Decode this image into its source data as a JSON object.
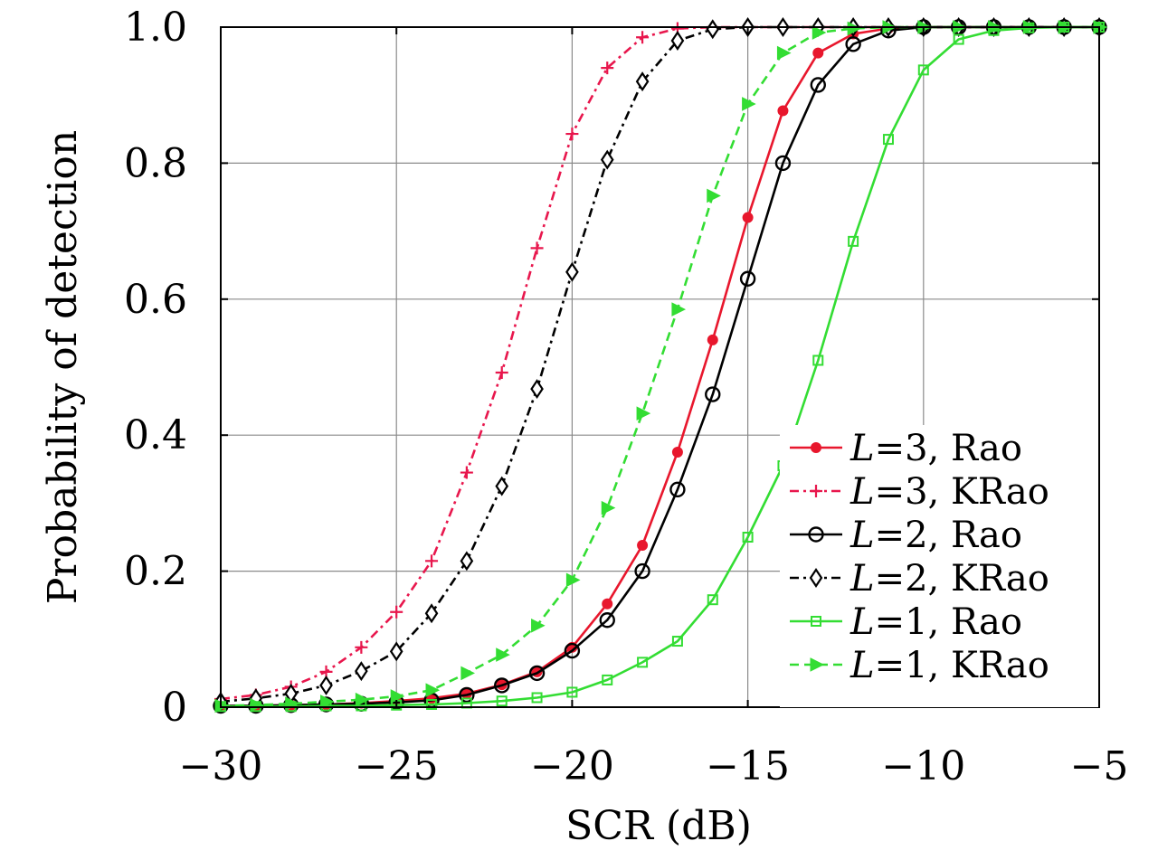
{
  "chart_data": {
    "type": "line",
    "title": "",
    "xlabel": "SCR (dB)",
    "ylabel": "Probability of detection",
    "xlim": [
      -30,
      -5
    ],
    "ylim": [
      0,
      1
    ],
    "xticks": [
      -30,
      -25,
      -20,
      -15,
      -10,
      -5
    ],
    "xtick_labels": [
      "−30",
      "−25",
      "−20",
      "−15",
      "−10",
      "−5"
    ],
    "yticks": [
      0,
      0.2,
      0.4,
      0.6,
      0.8,
      1.0
    ],
    "ytick_labels": [
      "0",
      "0.2",
      "0.4",
      "0.6",
      "0.8",
      "1.0"
    ],
    "grid": true,
    "legend_position": "bottom-right",
    "x": [
      -30,
      -29,
      -28,
      -27,
      -26,
      -25,
      -24,
      -23,
      -22,
      -21,
      -20,
      -19,
      -18,
      -17,
      -16,
      -15,
      -14,
      -13,
      -12,
      -11,
      -10,
      -9,
      -8,
      -7,
      -6,
      -5
    ],
    "series": [
      {
        "name": "L=3, Rao",
        "legend_var": "L",
        "legend_rest": "=3, Rao",
        "color": "#e8172d",
        "dash": "solid",
        "marker": "filled-circle",
        "values": [
          0.002,
          0.002,
          0.003,
          0.004,
          0.006,
          0.009,
          0.013,
          0.02,
          0.033,
          0.052,
          0.088,
          0.152,
          0.238,
          0.375,
          0.54,
          0.72,
          0.877,
          0.962,
          0.99,
          0.998,
          1.0,
          1.0,
          1.0,
          1.0,
          1.0,
          1.0
        ]
      },
      {
        "name": "L=3, KRao",
        "legend_var": "L",
        "legend_rest": "=3, KRao",
        "color": "#e8174d",
        "dash": "dashdot",
        "marker": "plus",
        "values": [
          0.012,
          0.018,
          0.03,
          0.052,
          0.088,
          0.14,
          0.215,
          0.345,
          0.492,
          0.675,
          0.843,
          0.94,
          0.985,
          0.998,
          1.0,
          1.0,
          1.0,
          1.0,
          1.0,
          1.0,
          1.0,
          1.0,
          1.0,
          1.0,
          1.0,
          1.0
        ]
      },
      {
        "name": "L=2, Rao",
        "legend_var": "L",
        "legend_rest": "=2, Rao",
        "color": "#000000",
        "dash": "solid",
        "marker": "open-circle",
        "values": [
          0.002,
          0.002,
          0.003,
          0.004,
          0.005,
          0.007,
          0.01,
          0.018,
          0.032,
          0.05,
          0.083,
          0.128,
          0.2,
          0.32,
          0.46,
          0.63,
          0.8,
          0.915,
          0.975,
          0.995,
          1.0,
          1.0,
          1.0,
          1.0,
          1.0,
          1.0
        ]
      },
      {
        "name": "L=2, KRao",
        "legend_var": "L",
        "legend_rest": "=2, KRao",
        "color": "#000000",
        "dash": "dashdot",
        "marker": "open-diamond",
        "values": [
          0.008,
          0.013,
          0.02,
          0.032,
          0.053,
          0.082,
          0.138,
          0.215,
          0.325,
          0.468,
          0.64,
          0.805,
          0.92,
          0.98,
          0.997,
          1.0,
          1.0,
          1.0,
          1.0,
          1.0,
          1.0,
          1.0,
          1.0,
          1.0,
          1.0,
          1.0
        ]
      },
      {
        "name": "L=1, Rao",
        "legend_var": "L",
        "legend_rest": "=1, Rao",
        "color": "#33dd33",
        "dash": "solid",
        "marker": "open-square",
        "values": [
          0.001,
          0.001,
          0.001,
          0.002,
          0.002,
          0.003,
          0.004,
          0.006,
          0.009,
          0.014,
          0.022,
          0.04,
          0.066,
          0.097,
          0.158,
          0.25,
          0.355,
          0.51,
          0.685,
          0.835,
          0.937,
          0.982,
          0.995,
          0.999,
          1.0,
          1.0
        ]
      },
      {
        "name": "L=1, KRao",
        "legend_var": "L",
        "legend_rest": "=1, KRao",
        "color": "#33dd33",
        "dash": "dashed",
        "marker": "filled-triangle-right",
        "values": [
          0.002,
          0.003,
          0.005,
          0.008,
          0.011,
          0.016,
          0.025,
          0.05,
          0.077,
          0.12,
          0.187,
          0.293,
          0.432,
          0.585,
          0.752,
          0.887,
          0.962,
          0.992,
          0.998,
          1.0,
          1.0,
          1.0,
          1.0,
          1.0,
          1.0,
          1.0
        ]
      }
    ]
  }
}
